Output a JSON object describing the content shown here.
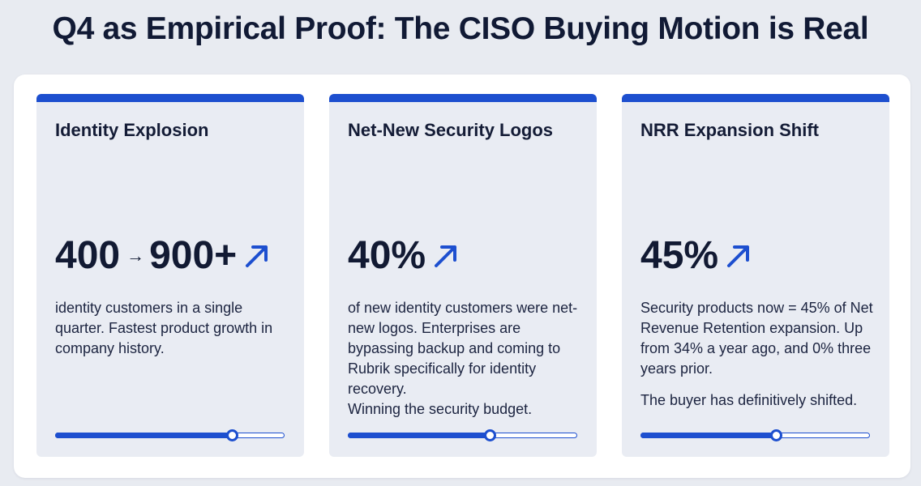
{
  "title": "Q4 as Empirical Proof: The CISO Buying Motion is Real",
  "colors": {
    "accent": "#1d4fcf",
    "text": "#121a33",
    "card_bg": "#e9ecf3",
    "page_bg": "#e8ebf1"
  },
  "cards": [
    {
      "title": "Identity Explosion",
      "metric_from": "400",
      "metric_sep": "→",
      "metric": "900+",
      "trend_icon": "arrow-up-right-icon",
      "desc_lines": [
        "identity customers in a single quarter. Fastest product growth in company history."
      ],
      "progress": 0.77
    },
    {
      "title": "Net-New Security Logos",
      "metric": "40%",
      "trend_icon": "arrow-up-right-icon",
      "desc_lines": [
        "of new identity customers were net-new logos. Enterprises are bypassing backup and coming to Rubrik specifically for identity recovery.",
        "Winning the security budget."
      ],
      "progress": 0.62
    },
    {
      "title": "NRR Expansion Shift",
      "metric": "45%",
      "trend_icon": "arrow-up-right-icon",
      "desc_lines": [
        "Security products now = 45% of Net Revenue Retention expansion. Up from 34% a year ago, and 0% three years prior.",
        "The buyer has definitively shifted."
      ],
      "progress": 0.59
    }
  ]
}
